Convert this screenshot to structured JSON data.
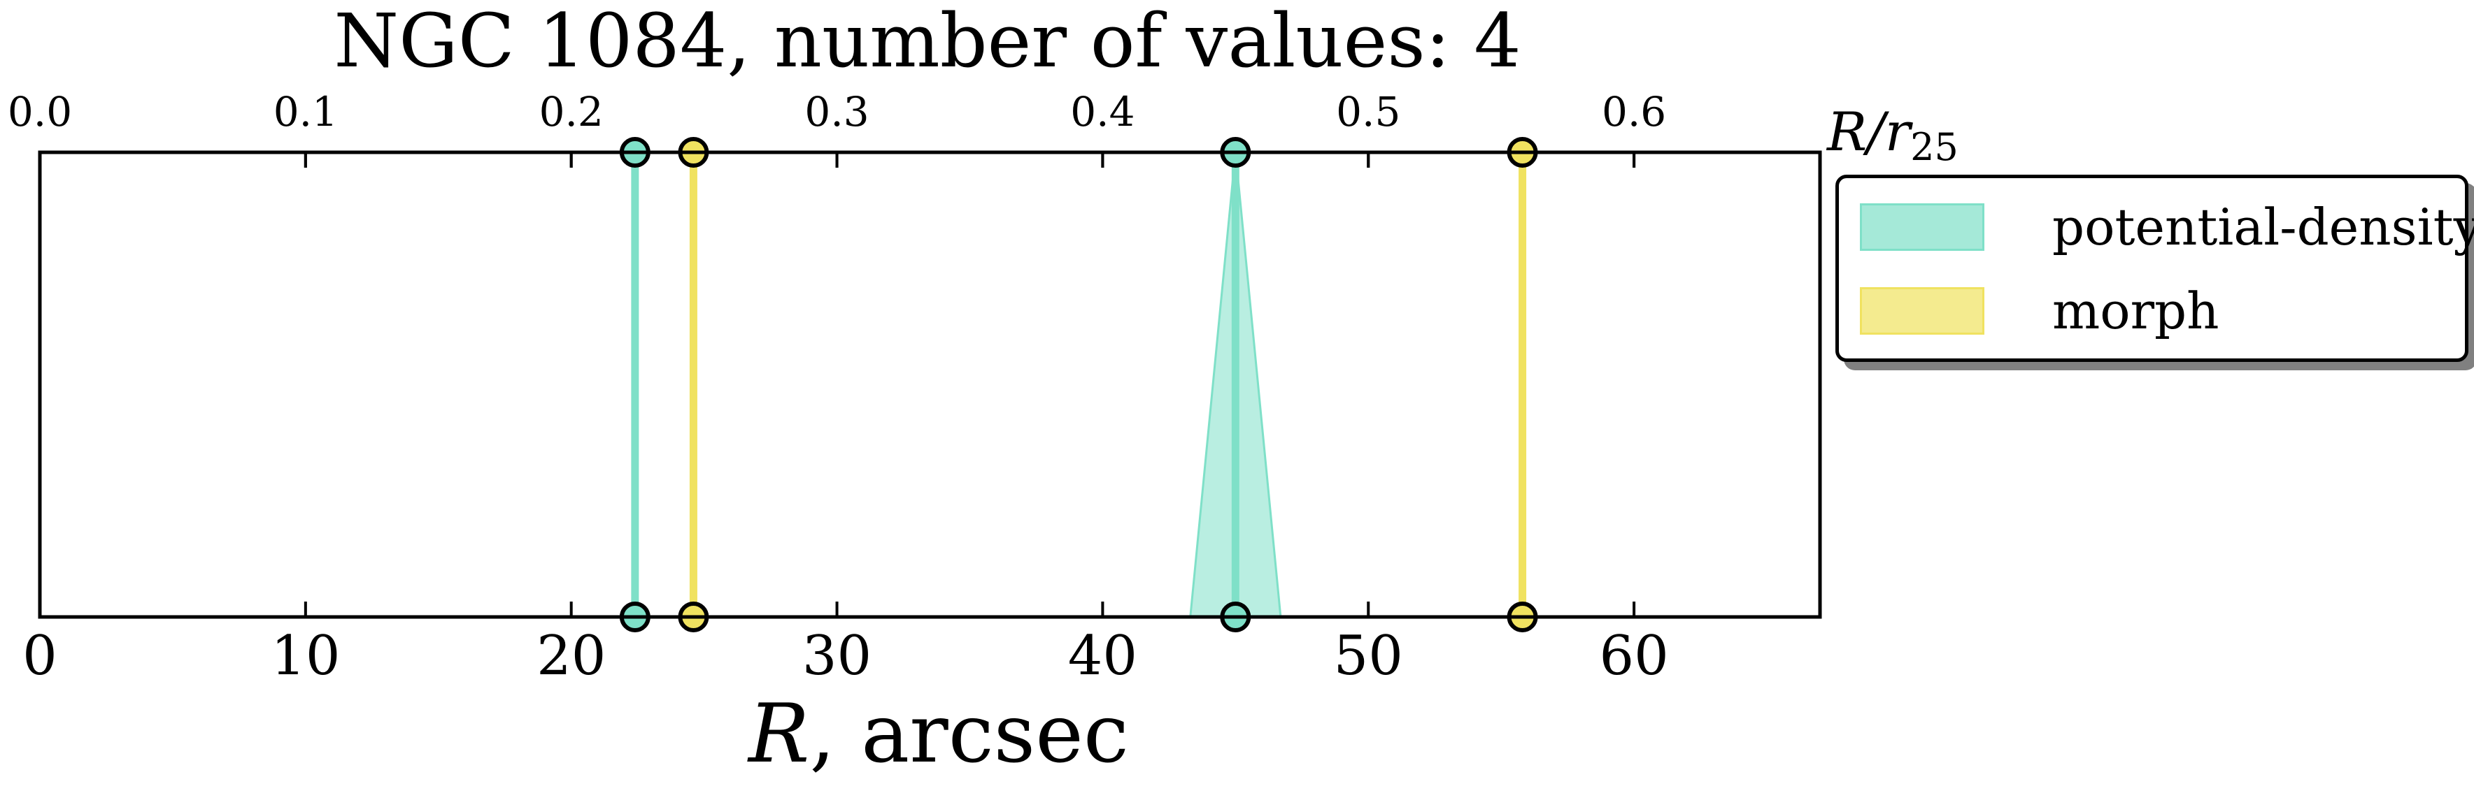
{
  "chart_data": {
    "type": "line",
    "title": "NGC 1084, number of values: 4",
    "xlabel_var": "R",
    "xlabel_unit": ", arcsec",
    "top_xlabel": {
      "main": "R/r",
      "sub": "25"
    },
    "xlim": [
      0,
      67
    ],
    "xticks": [
      0,
      10,
      20,
      30,
      40,
      50,
      60
    ],
    "top_xlim": [
      0,
      0.67
    ],
    "top_xticks": [
      "0.0",
      "0.1",
      "0.2",
      "0.3",
      "0.4",
      "0.5",
      "0.6"
    ],
    "legend_position": "outside-right-top",
    "series": [
      {
        "name": "potential-density",
        "color": "#7fe0c8",
        "values": [
          {
            "x": 22.4,
            "err": 0
          },
          {
            "x": 45.0,
            "err": 1.7
          }
        ]
      },
      {
        "name": "morph",
        "color": "#f0e260",
        "values": [
          {
            "x": 24.6,
            "err": 0
          },
          {
            "x": 55.8,
            "err": 0
          }
        ]
      }
    ]
  }
}
